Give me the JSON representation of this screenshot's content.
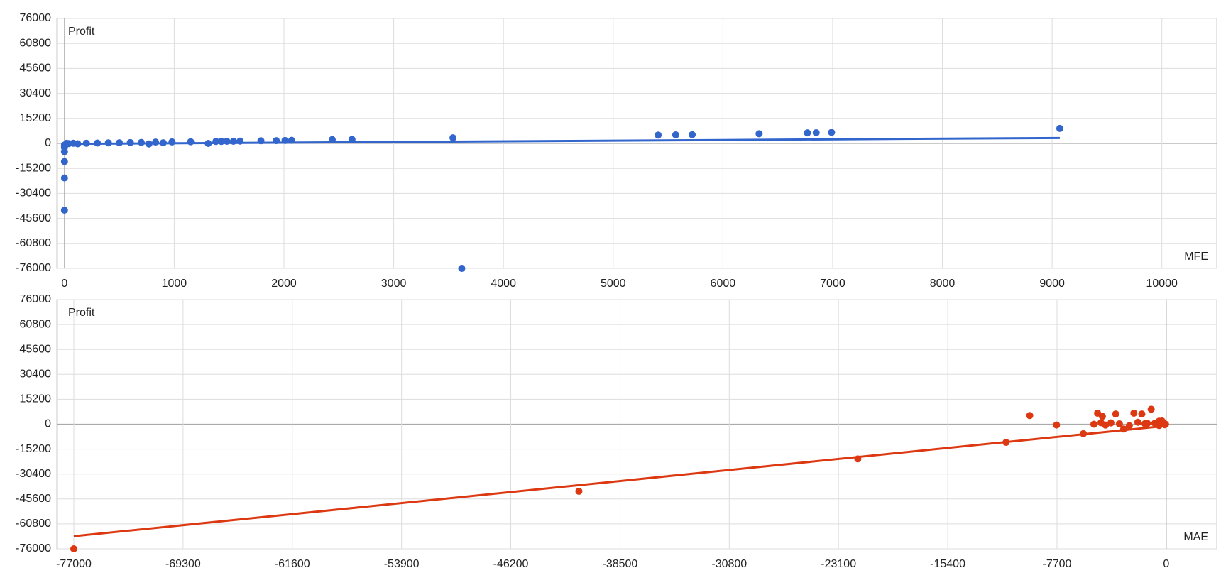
{
  "chart_data": [
    {
      "type": "scatter",
      "y_label": "Profit",
      "x_label": "MFE",
      "color": "#3366cc",
      "xlim": [
        -70,
        10500
      ],
      "xticks": [
        0,
        1000,
        2000,
        3000,
        4000,
        5000,
        6000,
        7000,
        8000,
        9000,
        10000
      ],
      "ylim": [
        -76000,
        76000
      ],
      "yticks": [
        -76000,
        -60800,
        -45600,
        -30400,
        -15200,
        0,
        15200,
        30400,
        45600,
        60800,
        76000
      ],
      "grid": true,
      "x": [
        0,
        0,
        0,
        0,
        0,
        0,
        3620,
        9070,
        6990,
        6850,
        6770,
        6330,
        5720,
        5570,
        5410,
        3540,
        2620,
        2440,
        2070,
        2010,
        1930,
        1790,
        1600,
        1540,
        1480,
        1430,
        1380,
        1310,
        1150,
        980,
        900,
        830,
        770,
        700,
        600,
        500,
        400,
        300,
        200,
        120,
        80,
        40,
        20
      ],
      "values": [
        -40600,
        -21000,
        -11000,
        -5000,
        -2500,
        -1000,
        -76000,
        9100,
        6700,
        6500,
        6400,
        5900,
        5300,
        5200,
        5100,
        3400,
        2400,
        2300,
        1900,
        1800,
        1700,
        1600,
        1400,
        1300,
        1300,
        1200,
        1200,
        0,
        1000,
        900,
        400,
        800,
        -300,
        600,
        500,
        400,
        300,
        200,
        100,
        -200,
        100,
        -100,
        50
      ],
      "trendline": {
        "x": [
          0,
          9070
        ],
        "values": [
          -300,
          3300
        ]
      }
    },
    {
      "type": "scatter",
      "y_label": "Profit",
      "x_label": "MAE",
      "color": "#dc3912",
      "xlim": [
        -78200,
        3560
      ],
      "xticks": [
        -77000,
        -69300,
        -61600,
        -53900,
        -46200,
        -38500,
        -30800,
        -23100,
        -15400,
        -7700,
        0
      ],
      "ylim": [
        -76000,
        76000
      ],
      "yticks": [
        -76000,
        -60800,
        -45600,
        -30400,
        -15200,
        0,
        15200,
        30400,
        45600,
        60800,
        76000
      ],
      "grid": true,
      "x": [
        -77000,
        -41400,
        -21740,
        -11290,
        -9620,
        -7730,
        -5840,
        -4840,
        -4500,
        -5100,
        -3560,
        -2600,
        -2280,
        -1720,
        -1060,
        -500,
        -3000,
        -4280,
        -1330,
        -200,
        -500,
        -50,
        -3900,
        -3300,
        -2000,
        -1500,
        -800,
        -300,
        -100,
        -4600
      ],
      "values": [
        -76000,
        -40900,
        -21160,
        -11060,
        5290,
        -480,
        -5770,
        6730,
        4810,
        0,
        6250,
        -900,
        6730,
        6250,
        9140,
        1900,
        -2900,
        -500,
        500,
        1000,
        -800,
        0,
        800,
        200,
        1200,
        300,
        600,
        2000,
        -300,
        900
      ],
      "trendline": {
        "x": [
          -77000,
          0
        ],
        "values": [
          -68300,
          -1000
        ]
      }
    }
  ]
}
